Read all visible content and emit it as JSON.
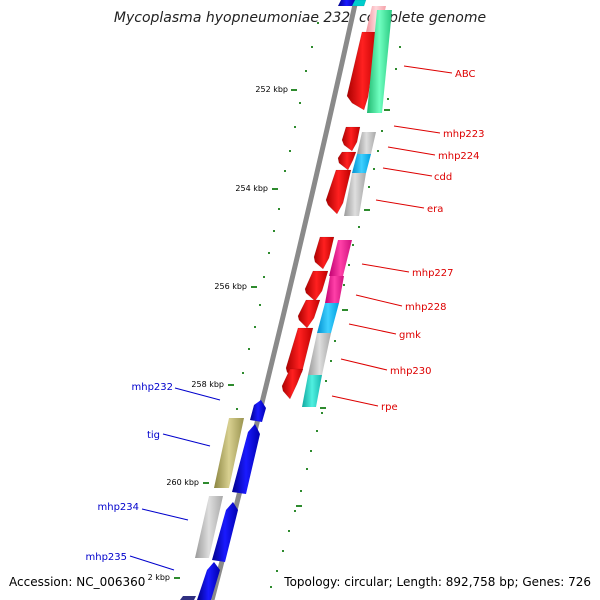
{
  "title": "Mycoplasma hyopneumoniae 232, complete genome",
  "footer": {
    "accession": "Accession: NC_006360",
    "stats": "Topology: circular; Length: 892,758 bp; Genes: 726"
  },
  "ticks": [
    "252 kbp",
    "254 kbp",
    "256 kbp",
    "258 kbp",
    "260 kbp",
    "2 kbp"
  ],
  "colors": {
    "backbone": "#8a8a8a",
    "forward_gene": "#ff0000",
    "reverse_gene": "#0000ff",
    "tick": "#2e8b2e",
    "label_forward": "#dd0000",
    "label_reverse": "#0000cc",
    "cog_gray": "#c4c4c4",
    "cog_cyan": "#00bfff",
    "cog_teal": "#20d8c8",
    "cog_magenta": "#ff1493",
    "cog_olive": "#b8b060",
    "cog_green": "#3ae8a0",
    "cog_pink": "#ffb0b8"
  },
  "gene_labels_forward": [
    "ABC",
    "mhp223",
    "mhp224",
    "cdd",
    "era",
    "mhp227",
    "mhp228",
    "gmk",
    "mhp230",
    "rpe"
  ],
  "gene_labels_reverse": [
    "mhp232",
    "tig",
    "mhp234",
    "mhp235"
  ]
}
